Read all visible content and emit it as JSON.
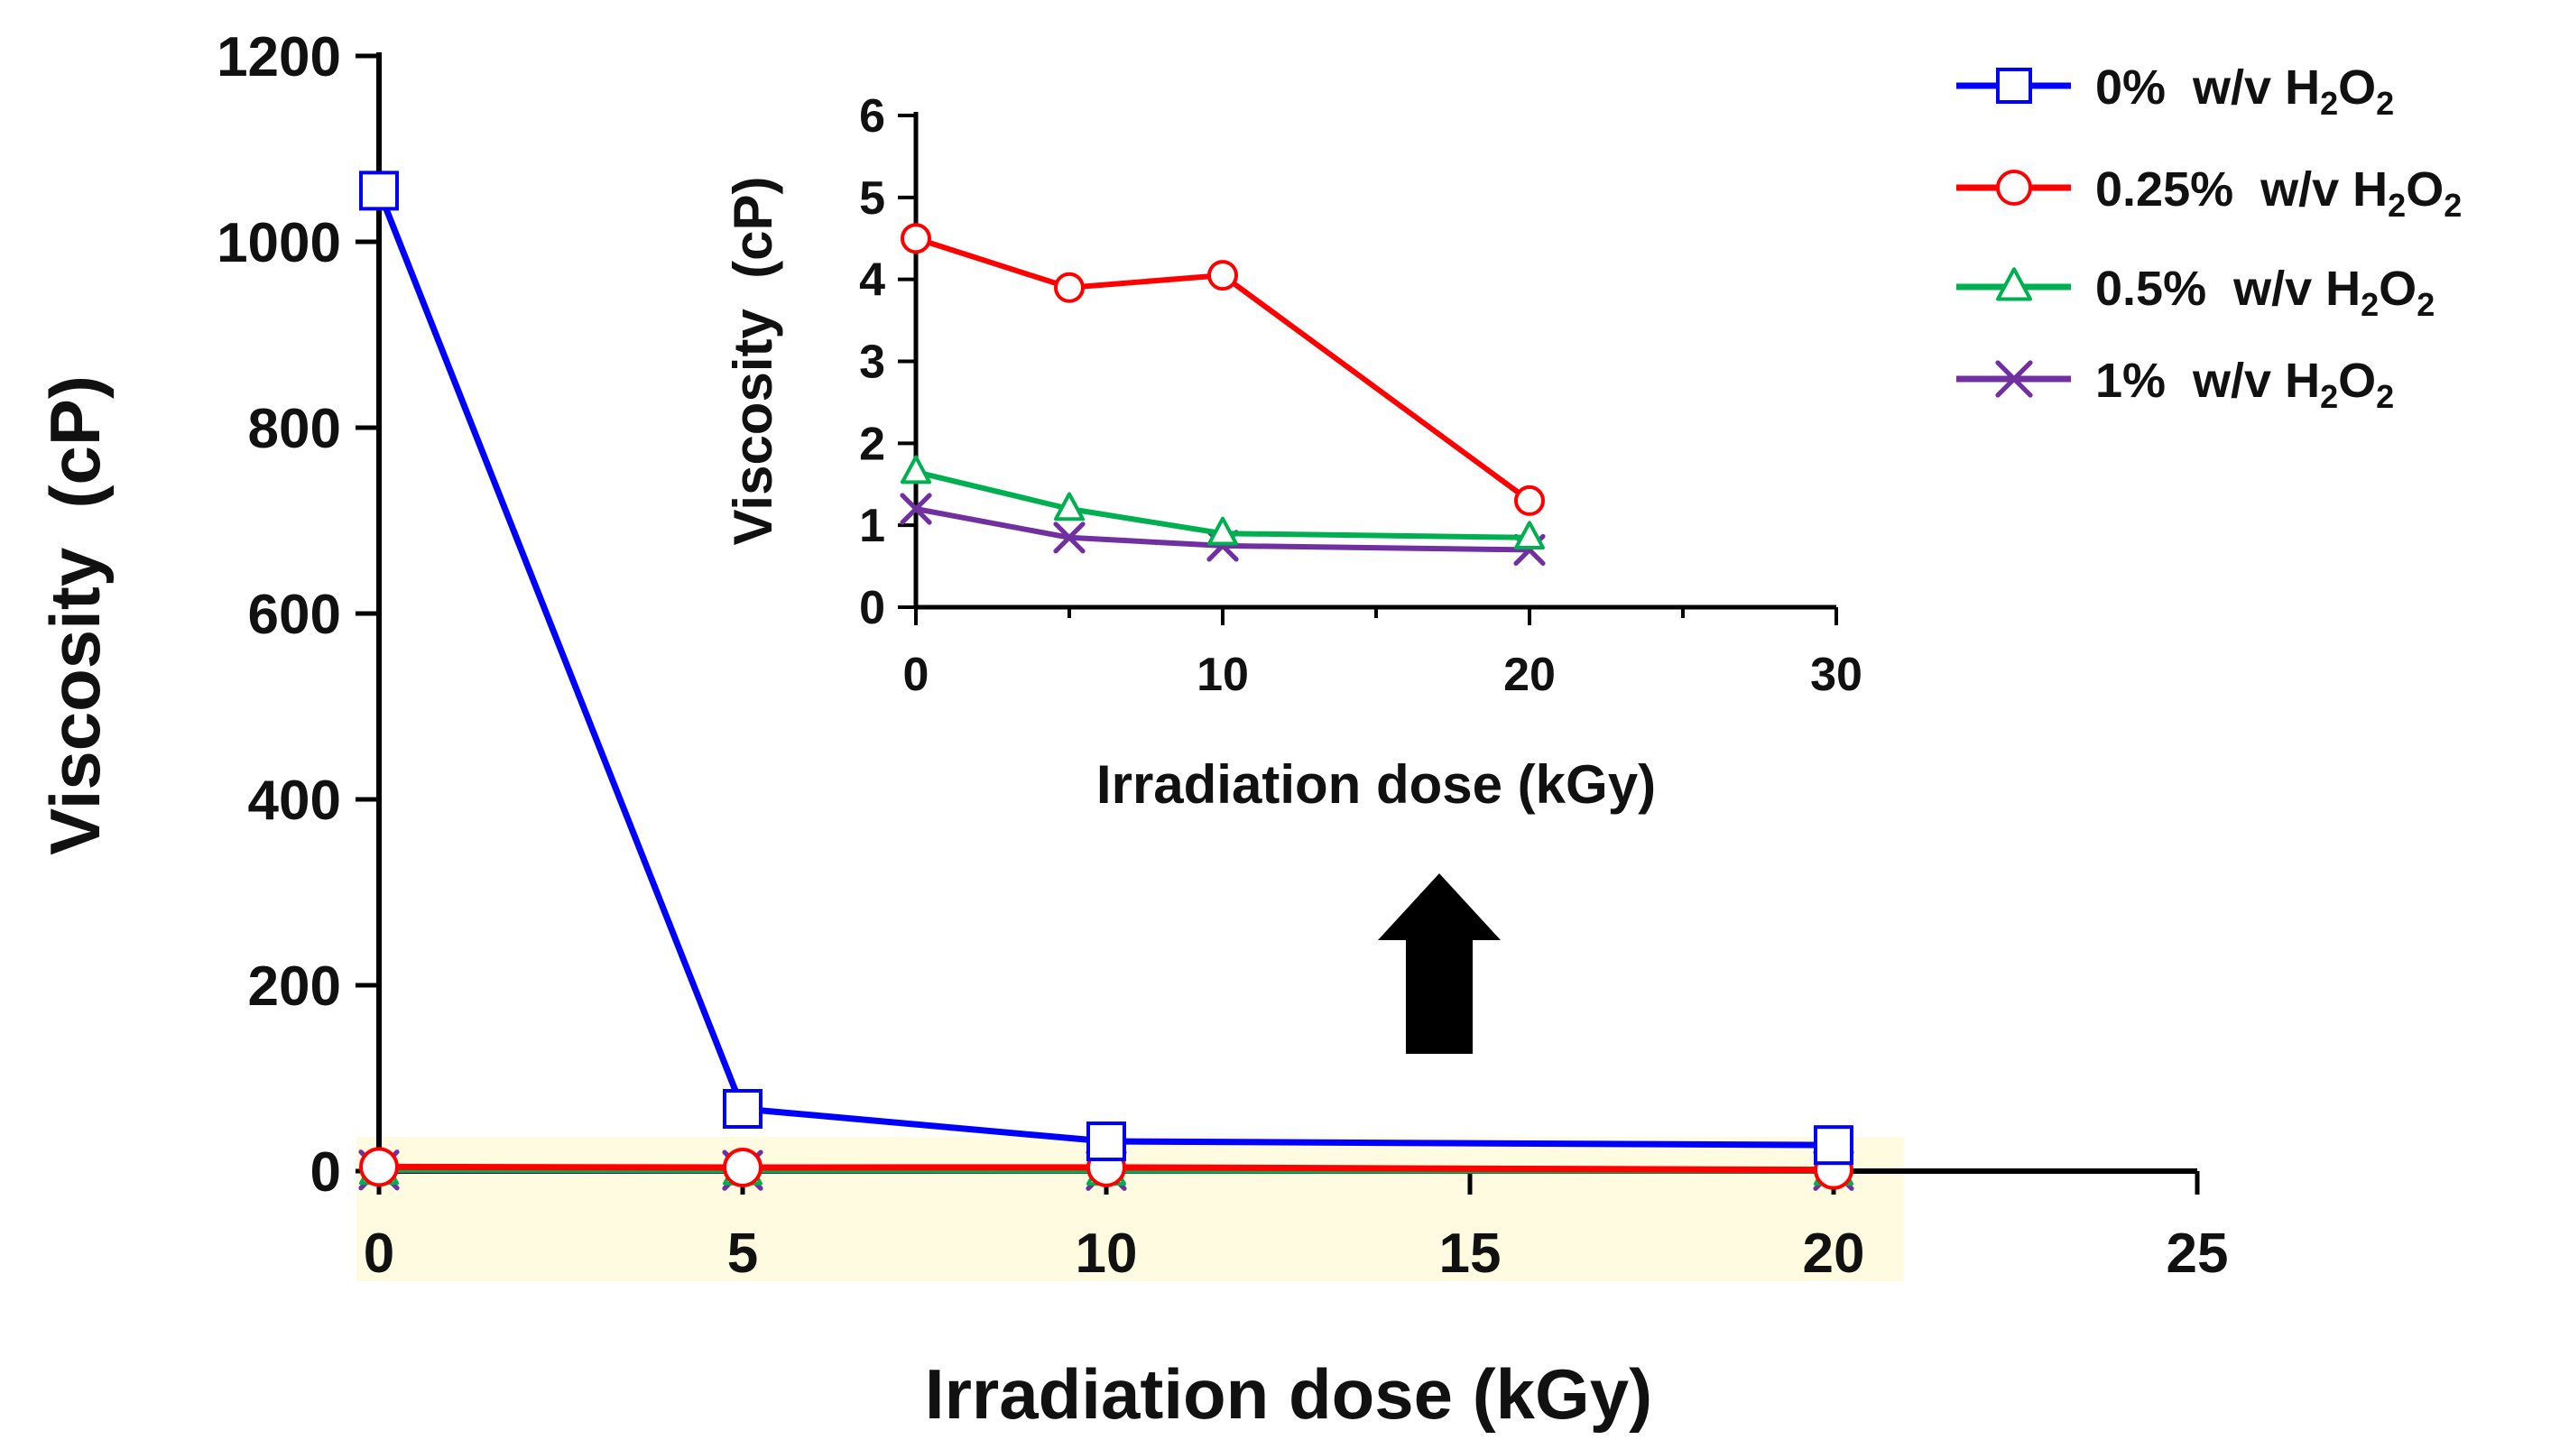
{
  "chart_data": [
    {
      "id": "main",
      "type": "line",
      "title": "",
      "xlabel": "Irradiation dose (kGy)",
      "ylabel": "Viscosity  (cP)",
      "xlim": [
        0,
        25
      ],
      "ylim": [
        0,
        1200
      ],
      "xticks": [
        "0",
        "5",
        "10",
        "15",
        "20",
        "25"
      ],
      "yticks": [
        "0",
        "200",
        "400",
        "600",
        "800",
        "1000",
        "1200"
      ],
      "x": [
        0,
        5,
        10,
        20
      ],
      "series": [
        {
          "name": "0% w/v H2O2",
          "label_parts": [
            "0%  w/v H",
            "2",
            "O",
            "2"
          ],
          "color": "#0000ff",
          "marker": "square",
          "values": [
            1055,
            67,
            32,
            28
          ]
        },
        {
          "name": "0.25% w/v H2O2",
          "label_parts": [
            "0.25%  w/v H",
            "2",
            "O",
            "2"
          ],
          "color": "#ff0000",
          "marker": "circle",
          "values": [
            4.5,
            3.9,
            4.05,
            1.3
          ]
        },
        {
          "name": "0.5% w/v H2O2",
          "label_parts": [
            "0.5%  w/v H",
            "2",
            "O",
            "2"
          ],
          "color": "#00b050",
          "marker": "triangle",
          "values": [
            1.65,
            1.2,
            0.9,
            0.85
          ]
        },
        {
          "name": "1% w/v H2O2",
          "label_parts": [
            "1%  w/v H",
            "2",
            "O",
            "2"
          ],
          "color": "#7030a0",
          "marker": "x",
          "values": [
            1.2,
            0.85,
            0.75,
            0.7
          ]
        }
      ],
      "highlight_color": "#fffbe0",
      "legend": "top-right"
    },
    {
      "id": "inset",
      "type": "line",
      "title": "",
      "xlabel": "Irradiation dose (kGy)",
      "ylabel": "Viscosity  (cP)",
      "xlim": [
        0,
        30
      ],
      "ylim": [
        0,
        6
      ],
      "xticks": [
        "0",
        "10",
        "20",
        "30"
      ],
      "yticks": [
        "0",
        "1",
        "2",
        "3",
        "4",
        "5",
        "6"
      ],
      "x": [
        0,
        5,
        10,
        20
      ],
      "series": [
        {
          "name": "0.25% w/v H2O2",
          "color": "#ff0000",
          "marker": "circle",
          "values": [
            4.5,
            3.9,
            4.05,
            1.3
          ]
        },
        {
          "name": "0.5% w/v H2O2",
          "color": "#00b050",
          "marker": "triangle",
          "values": [
            1.65,
            1.2,
            0.9,
            0.85
          ]
        },
        {
          "name": "1% w/v H2O2",
          "color": "#7030a0",
          "marker": "x",
          "values": [
            1.2,
            0.85,
            0.75,
            0.7
          ]
        }
      ]
    }
  ],
  "annotation": {
    "arrow": "up-arrow",
    "color": "#000000"
  }
}
